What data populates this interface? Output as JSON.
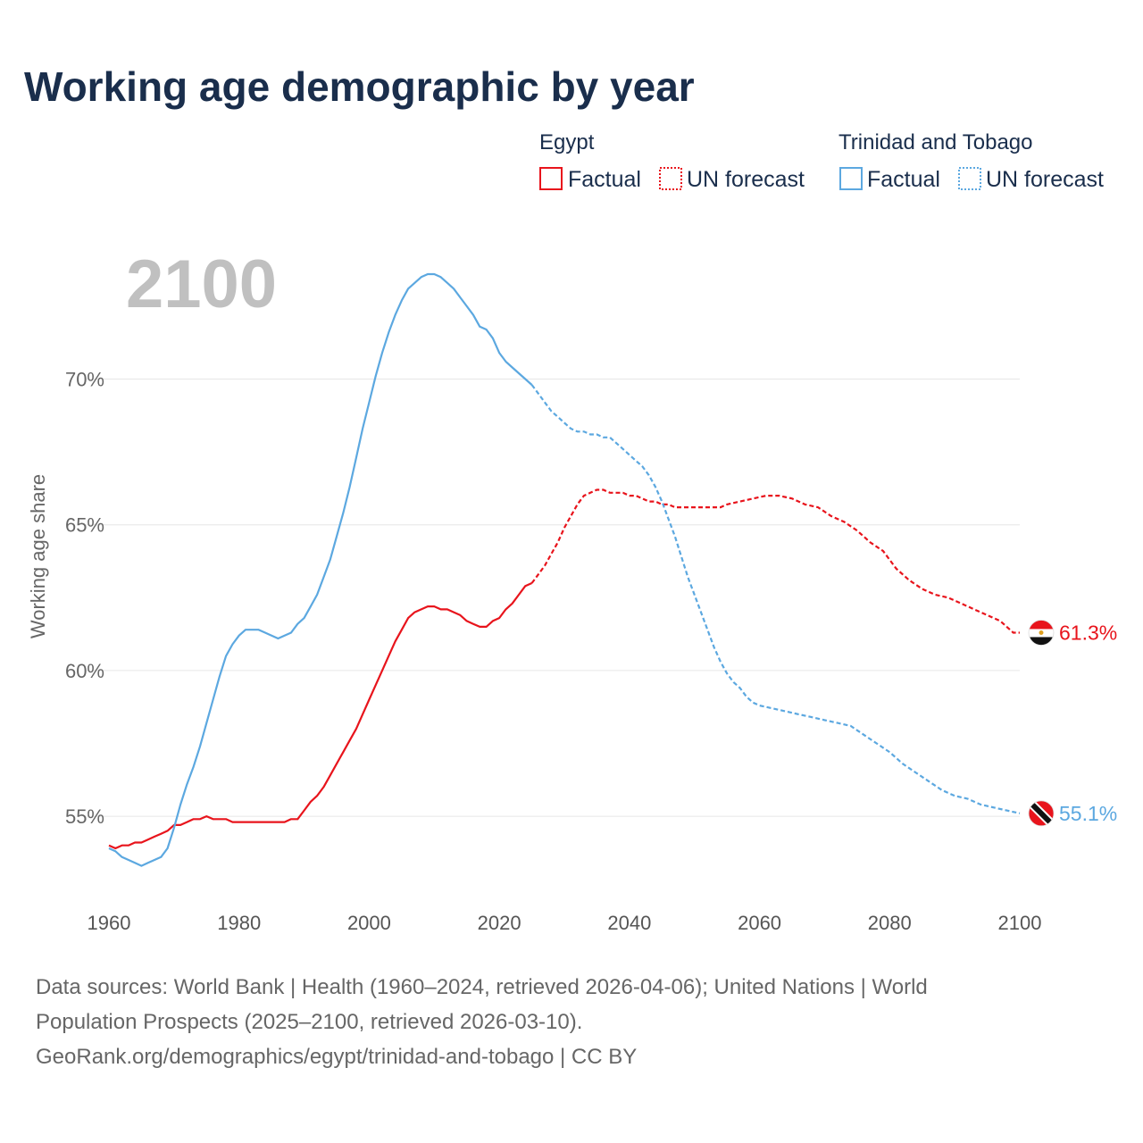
{
  "chart_data": {
    "type": "line",
    "title": "Working age demographic by year",
    "year_display": "2100",
    "ylabel": "Working age share",
    "xlabel": "",
    "xlim": [
      1960,
      2100
    ],
    "ylim": [
      52,
      75.5
    ],
    "x_ticks": [
      1960,
      1980,
      2000,
      2020,
      2040,
      2060,
      2080,
      2100
    ],
    "x_tick_labels": [
      "1960",
      "1980",
      "2000",
      "2020",
      "2040",
      "2060",
      "2080",
      "2100"
    ],
    "y_ticks": [
      55,
      60,
      65,
      70
    ],
    "y_tick_labels": [
      "55%",
      "60%",
      "65%",
      "70%"
    ],
    "factual_end_year": 2025,
    "legend": {
      "placement": "top-right",
      "factual_label": "Factual",
      "forecast_label": "UN forecast"
    },
    "series": [
      {
        "name": "Egypt",
        "color": "#e8141c",
        "flag": "egypt-flag",
        "end_label": "61.3%",
        "points": [
          [
            1960,
            54.0
          ],
          [
            1961,
            53.9
          ],
          [
            1962,
            54.0
          ],
          [
            1963,
            54.0
          ],
          [
            1964,
            54.1
          ],
          [
            1965,
            54.1
          ],
          [
            1966,
            54.2
          ],
          [
            1967,
            54.3
          ],
          [
            1968,
            54.4
          ],
          [
            1969,
            54.5
          ],
          [
            1970,
            54.7
          ],
          [
            1971,
            54.7
          ],
          [
            1972,
            54.8
          ],
          [
            1973,
            54.9
          ],
          [
            1974,
            54.9
          ],
          [
            1975,
            55.0
          ],
          [
            1976,
            54.9
          ],
          [
            1977,
            54.9
          ],
          [
            1978,
            54.9
          ],
          [
            1979,
            54.8
          ],
          [
            1980,
            54.8
          ],
          [
            1982,
            54.8
          ],
          [
            1984,
            54.8
          ],
          [
            1986,
            54.8
          ],
          [
            1987,
            54.8
          ],
          [
            1988,
            54.9
          ],
          [
            1989,
            54.9
          ],
          [
            1990,
            55.2
          ],
          [
            1991,
            55.5
          ],
          [
            1992,
            55.7
          ],
          [
            1993,
            56.0
          ],
          [
            1994,
            56.4
          ],
          [
            1995,
            56.8
          ],
          [
            1996,
            57.2
          ],
          [
            1997,
            57.6
          ],
          [
            1998,
            58.0
          ],
          [
            1999,
            58.5
          ],
          [
            2000,
            59.0
          ],
          [
            2001,
            59.5
          ],
          [
            2002,
            60.0
          ],
          [
            2003,
            60.5
          ],
          [
            2004,
            61.0
          ],
          [
            2005,
            61.4
          ],
          [
            2006,
            61.8
          ],
          [
            2007,
            62.0
          ],
          [
            2008,
            62.1
          ],
          [
            2009,
            62.2
          ],
          [
            2010,
            62.2
          ],
          [
            2011,
            62.1
          ],
          [
            2012,
            62.1
          ],
          [
            2013,
            62.0
          ],
          [
            2014,
            61.9
          ],
          [
            2015,
            61.7
          ],
          [
            2016,
            61.6
          ],
          [
            2017,
            61.5
          ],
          [
            2018,
            61.5
          ],
          [
            2019,
            61.7
          ],
          [
            2020,
            61.8
          ],
          [
            2021,
            62.1
          ],
          [
            2022,
            62.3
          ],
          [
            2023,
            62.6
          ],
          [
            2024,
            62.9
          ],
          [
            2025,
            63.0
          ],
          [
            2026,
            63.3
          ],
          [
            2027,
            63.6
          ],
          [
            2028,
            64.0
          ],
          [
            2029,
            64.4
          ],
          [
            2030,
            64.9
          ],
          [
            2031,
            65.3
          ],
          [
            2032,
            65.7
          ],
          [
            2033,
            66.0
          ],
          [
            2034,
            66.1
          ],
          [
            2035,
            66.2
          ],
          [
            2036,
            66.2
          ],
          [
            2037,
            66.1
          ],
          [
            2038,
            66.1
          ],
          [
            2039,
            66.1
          ],
          [
            2040,
            66.0
          ],
          [
            2041,
            66.0
          ],
          [
            2042,
            65.9
          ],
          [
            2043,
            65.8
          ],
          [
            2044,
            65.8
          ],
          [
            2045,
            65.7
          ],
          [
            2046,
            65.7
          ],
          [
            2047,
            65.6
          ],
          [
            2048,
            65.6
          ],
          [
            2050,
            65.6
          ],
          [
            2052,
            65.6
          ],
          [
            2054,
            65.6
          ],
          [
            2055,
            65.7
          ],
          [
            2057,
            65.8
          ],
          [
            2059,
            65.9
          ],
          [
            2061,
            66.0
          ],
          [
            2063,
            66.0
          ],
          [
            2065,
            65.9
          ],
          [
            2067,
            65.7
          ],
          [
            2069,
            65.6
          ],
          [
            2071,
            65.3
          ],
          [
            2073,
            65.1
          ],
          [
            2075,
            64.8
          ],
          [
            2077,
            64.4
          ],
          [
            2079,
            64.1
          ],
          [
            2081,
            63.5
          ],
          [
            2083,
            63.1
          ],
          [
            2085,
            62.8
          ],
          [
            2087,
            62.6
          ],
          [
            2089,
            62.5
          ],
          [
            2091,
            62.3
          ],
          [
            2093,
            62.1
          ],
          [
            2095,
            61.9
          ],
          [
            2097,
            61.7
          ],
          [
            2098,
            61.5
          ],
          [
            2099,
            61.3
          ],
          [
            2100,
            61.3
          ]
        ]
      },
      {
        "name": "Trinidad and Tobago",
        "color": "#5ca8e0",
        "flag": "trinidad-and-tobago-flag",
        "end_label": "55.1%",
        "points": [
          [
            1960,
            53.9
          ],
          [
            1961,
            53.8
          ],
          [
            1962,
            53.6
          ],
          [
            1963,
            53.5
          ],
          [
            1964,
            53.4
          ],
          [
            1965,
            53.3
          ],
          [
            1966,
            53.4
          ],
          [
            1967,
            53.5
          ],
          [
            1968,
            53.6
          ],
          [
            1969,
            53.9
          ],
          [
            1970,
            54.6
          ],
          [
            1971,
            55.4
          ],
          [
            1972,
            56.1
          ],
          [
            1973,
            56.7
          ],
          [
            1974,
            57.4
          ],
          [
            1975,
            58.2
          ],
          [
            1976,
            59.0
          ],
          [
            1977,
            59.8
          ],
          [
            1978,
            60.5
          ],
          [
            1979,
            60.9
          ],
          [
            1980,
            61.2
          ],
          [
            1981,
            61.4
          ],
          [
            1982,
            61.4
          ],
          [
            1983,
            61.4
          ],
          [
            1984,
            61.3
          ],
          [
            1985,
            61.2
          ],
          [
            1986,
            61.1
          ],
          [
            1987,
            61.2
          ],
          [
            1988,
            61.3
          ],
          [
            1989,
            61.6
          ],
          [
            1990,
            61.8
          ],
          [
            1991,
            62.2
          ],
          [
            1992,
            62.6
          ],
          [
            1993,
            63.2
          ],
          [
            1994,
            63.8
          ],
          [
            1995,
            64.6
          ],
          [
            1996,
            65.4
          ],
          [
            1997,
            66.3
          ],
          [
            1998,
            67.3
          ],
          [
            1999,
            68.3
          ],
          [
            2000,
            69.2
          ],
          [
            2001,
            70.1
          ],
          [
            2002,
            70.9
          ],
          [
            2003,
            71.6
          ],
          [
            2004,
            72.2
          ],
          [
            2005,
            72.7
          ],
          [
            2006,
            73.1
          ],
          [
            2007,
            73.3
          ],
          [
            2008,
            73.5
          ],
          [
            2009,
            73.6
          ],
          [
            2010,
            73.6
          ],
          [
            2011,
            73.5
          ],
          [
            2012,
            73.3
          ],
          [
            2013,
            73.1
          ],
          [
            2014,
            72.8
          ],
          [
            2015,
            72.5
          ],
          [
            2016,
            72.2
          ],
          [
            2017,
            71.8
          ],
          [
            2018,
            71.7
          ],
          [
            2019,
            71.4
          ],
          [
            2020,
            70.9
          ],
          [
            2021,
            70.6
          ],
          [
            2022,
            70.4
          ],
          [
            2023,
            70.2
          ],
          [
            2024,
            70.0
          ],
          [
            2025,
            69.8
          ],
          [
            2026,
            69.5
          ],
          [
            2027,
            69.2
          ],
          [
            2028,
            68.9
          ],
          [
            2029,
            68.7
          ],
          [
            2030,
            68.5
          ],
          [
            2031,
            68.3
          ],
          [
            2032,
            68.2
          ],
          [
            2033,
            68.2
          ],
          [
            2034,
            68.1
          ],
          [
            2035,
            68.1
          ],
          [
            2036,
            68.0
          ],
          [
            2037,
            68.0
          ],
          [
            2038,
            67.8
          ],
          [
            2039,
            67.6
          ],
          [
            2040,
            67.4
          ],
          [
            2041,
            67.2
          ],
          [
            2042,
            67.0
          ],
          [
            2043,
            66.7
          ],
          [
            2044,
            66.3
          ],
          [
            2045,
            65.8
          ],
          [
            2046,
            65.2
          ],
          [
            2047,
            64.6
          ],
          [
            2048,
            63.9
          ],
          [
            2049,
            63.2
          ],
          [
            2050,
            62.6
          ],
          [
            2051,
            62.0
          ],
          [
            2052,
            61.4
          ],
          [
            2053,
            60.8
          ],
          [
            2054,
            60.3
          ],
          [
            2055,
            59.9
          ],
          [
            2056,
            59.6
          ],
          [
            2057,
            59.4
          ],
          [
            2058,
            59.1
          ],
          [
            2059,
            58.9
          ],
          [
            2060,
            58.8
          ],
          [
            2062,
            58.7
          ],
          [
            2064,
            58.6
          ],
          [
            2066,
            58.5
          ],
          [
            2068,
            58.4
          ],
          [
            2070,
            58.3
          ],
          [
            2072,
            58.2
          ],
          [
            2074,
            58.1
          ],
          [
            2076,
            57.8
          ],
          [
            2078,
            57.5
          ],
          [
            2080,
            57.2
          ],
          [
            2082,
            56.8
          ],
          [
            2084,
            56.5
          ],
          [
            2086,
            56.2
          ],
          [
            2088,
            55.9
          ],
          [
            2090,
            55.7
          ],
          [
            2092,
            55.6
          ],
          [
            2094,
            55.4
          ],
          [
            2096,
            55.3
          ],
          [
            2098,
            55.2
          ],
          [
            2100,
            55.1
          ]
        ]
      }
    ]
  },
  "source": {
    "line1": "Data sources: World Bank | Health (1960–2024, retrieved 2026-04-06); United Nations | World",
    "line2": "Population Prospects (2025–2100, retrieved 2026-03-10).",
    "line3": "GeoRank.org/demographics/egypt/trinidad-and-tobago | CC BY"
  }
}
